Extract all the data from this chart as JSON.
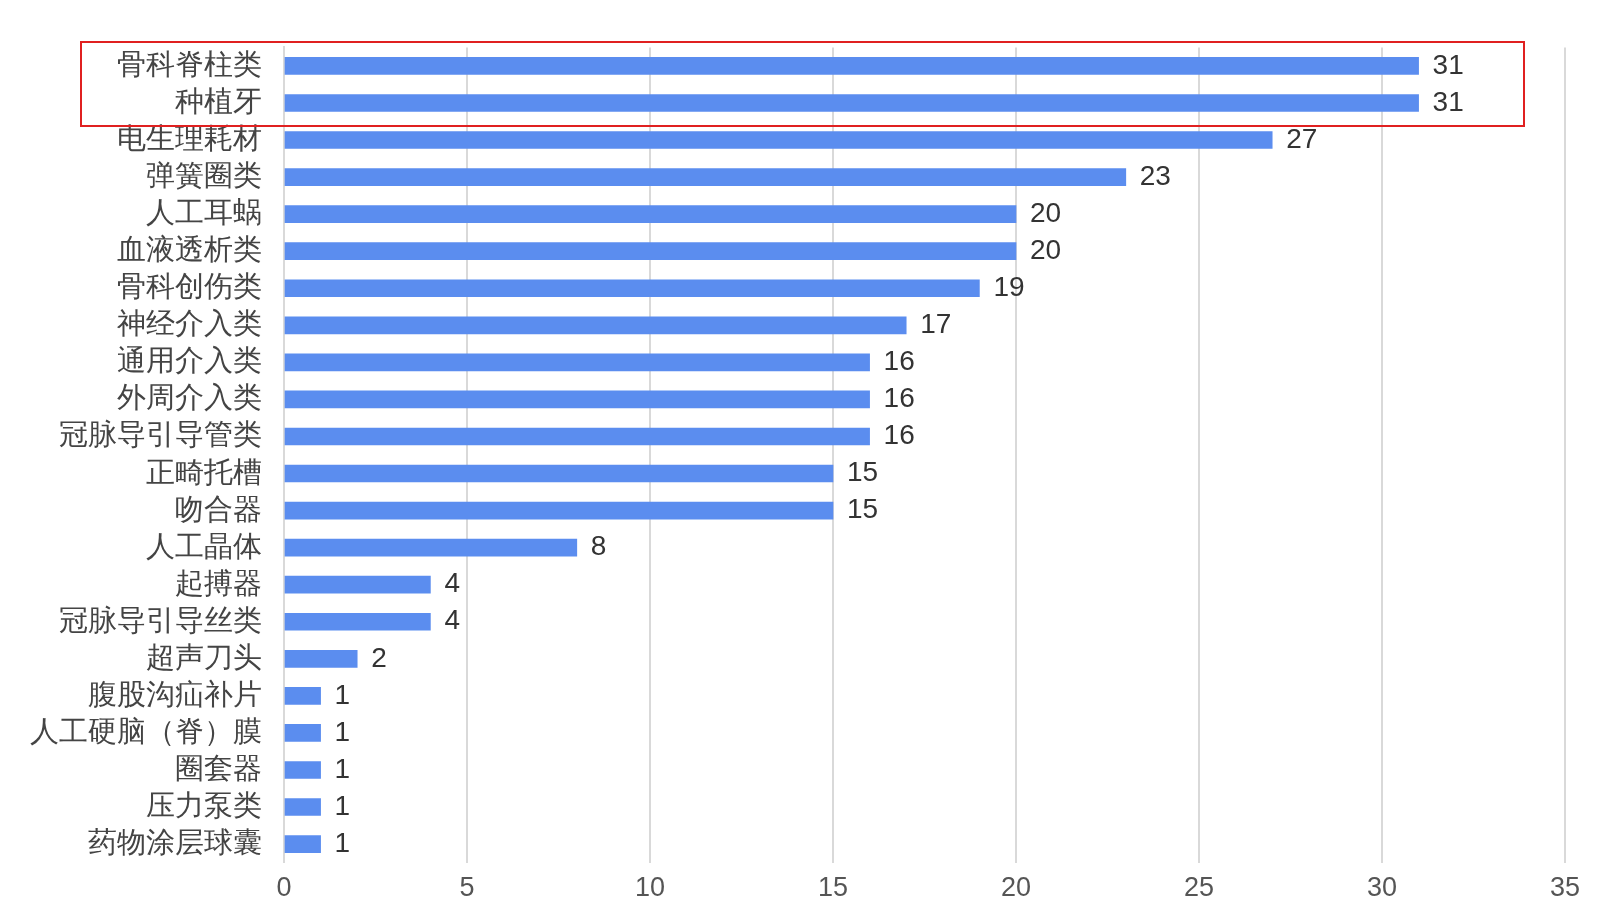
{
  "chart_data": {
    "type": "bar",
    "orientation": "horizontal",
    "categories": [
      "骨科脊柱类",
      "种植牙",
      "电生理耗材",
      "弹簧圈类",
      "人工耳蜗",
      "血液透析类",
      "骨科创伤类",
      "神经介入类",
      "通用介入类",
      "外周介入类",
      "冠脉导引导管类",
      "正畸托槽",
      "吻合器",
      "人工晶体",
      "起搏器",
      "冠脉导引导丝类",
      "超声刀头",
      "腹股沟疝补片",
      "人工硬脑（脊）膜",
      "圈套器",
      "压力泵类",
      "药物涂层球囊"
    ],
    "values": [
      31,
      31,
      27,
      23,
      20,
      20,
      19,
      17,
      16,
      16,
      16,
      15,
      15,
      8,
      4,
      4,
      2,
      1,
      1,
      1,
      1,
      1
    ],
    "color": "#5b8def",
    "xlim": [
      0,
      35
    ],
    "xticks": [
      0,
      5,
      10,
      15,
      20,
      25,
      30,
      35
    ],
    "grid": "x",
    "legend": false,
    "data_labels": true
  }
}
